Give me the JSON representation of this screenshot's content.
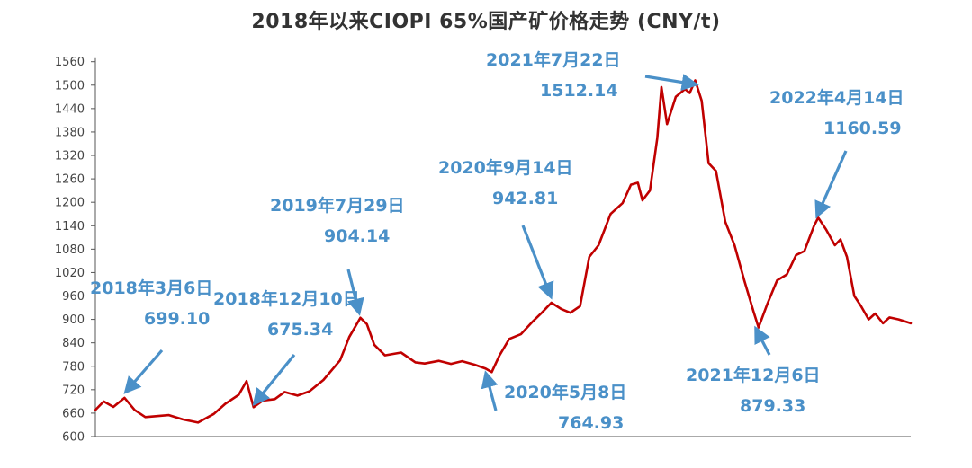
{
  "chart_data": {
    "type": "line",
    "title": "2018年以来CIOPI 65%国产矿价格走势 (CNY/t)",
    "xlabel": "",
    "ylabel": "",
    "ylim": [
      600,
      1580
    ],
    "yticks": [
      600,
      660,
      720,
      780,
      840,
      900,
      960,
      1020,
      1080,
      1140,
      1200,
      1260,
      1320,
      1380,
      1440,
      1500,
      1560
    ],
    "xlim": [
      "2018-01-02",
      "2022-10-31"
    ],
    "grid": false,
    "legend": "none",
    "colors": {
      "line": "#c00000",
      "annotation": "#4a90c8"
    },
    "series": [
      {
        "points": [
          [
            "2018-01-02",
            668
          ],
          [
            "2018-01-20",
            690
          ],
          [
            "2018-02-10",
            676
          ],
          [
            "2018-03-06",
            699.1
          ],
          [
            "2018-03-28",
            668
          ],
          [
            "2018-04-20",
            650
          ],
          [
            "2018-06-10",
            655
          ],
          [
            "2018-07-10",
            644
          ],
          [
            "2018-08-12",
            636
          ],
          [
            "2018-09-15",
            658
          ],
          [
            "2018-10-10",
            684
          ],
          [
            "2018-11-08",
            707
          ],
          [
            "2018-11-25",
            742
          ],
          [
            "2018-12-10",
            675.34
          ],
          [
            "2018-12-30",
            692
          ],
          [
            "2019-01-25",
            696
          ],
          [
            "2019-02-15",
            714
          ],
          [
            "2019-03-15",
            705
          ],
          [
            "2019-04-10",
            716
          ],
          [
            "2019-05-10",
            745
          ],
          [
            "2019-06-15",
            795
          ],
          [
            "2019-07-05",
            855
          ],
          [
            "2019-07-29",
            904.14
          ],
          [
            "2019-08-12",
            888
          ],
          [
            "2019-08-28",
            835
          ],
          [
            "2019-09-20",
            808
          ],
          [
            "2019-10-25",
            815
          ],
          [
            "2019-11-25",
            790
          ],
          [
            "2019-12-15",
            787
          ],
          [
            "2020-01-15",
            794
          ],
          [
            "2020-02-10",
            786
          ],
          [
            "2020-03-05",
            793
          ],
          [
            "2020-04-01",
            784
          ],
          [
            "2020-04-25",
            774
          ],
          [
            "2020-05-08",
            764.93
          ],
          [
            "2020-05-25",
            808
          ],
          [
            "2020-06-15",
            850
          ],
          [
            "2020-07-10",
            862
          ],
          [
            "2020-08-05",
            895
          ],
          [
            "2020-08-25",
            918
          ],
          [
            "2020-09-14",
            942.81
          ],
          [
            "2020-10-05",
            927
          ],
          [
            "2020-10-25",
            917
          ],
          [
            "2020-11-15",
            934
          ],
          [
            "2020-12-05",
            1060
          ],
          [
            "2020-12-25",
            1090
          ],
          [
            "2021-01-20",
            1170
          ],
          [
            "2021-02-15",
            1198
          ],
          [
            "2021-03-05",
            1245
          ],
          [
            "2021-03-20",
            1250
          ],
          [
            "2021-03-30",
            1205
          ],
          [
            "2021-04-15",
            1230
          ],
          [
            "2021-05-01",
            1365
          ],
          [
            "2021-05-10",
            1495
          ],
          [
            "2021-05-22",
            1400
          ],
          [
            "2021-06-10",
            1470
          ],
          [
            "2021-06-30",
            1490
          ],
          [
            "2021-07-10",
            1480
          ],
          [
            "2021-07-22",
            1512.14
          ],
          [
            "2021-08-05",
            1460
          ],
          [
            "2021-08-20",
            1300
          ],
          [
            "2021-09-05",
            1280
          ],
          [
            "2021-09-25",
            1150
          ],
          [
            "2021-10-15",
            1090
          ],
          [
            "2021-11-05",
            1000
          ],
          [
            "2021-11-25",
            920
          ],
          [
            "2021-12-06",
            879.33
          ],
          [
            "2021-12-25",
            940
          ],
          [
            "2022-01-15",
            1000
          ],
          [
            "2022-02-05",
            1015
          ],
          [
            "2022-02-25",
            1065
          ],
          [
            "2022-03-15",
            1075
          ],
          [
            "2022-04-05",
            1140
          ],
          [
            "2022-04-14",
            1160.59
          ],
          [
            "2022-05-01",
            1130
          ],
          [
            "2022-05-20",
            1090
          ],
          [
            "2022-06-01",
            1105
          ],
          [
            "2022-06-15",
            1060
          ],
          [
            "2022-07-01",
            960
          ],
          [
            "2022-07-15",
            935
          ],
          [
            "2022-08-01",
            900
          ],
          [
            "2022-08-15",
            915
          ],
          [
            "2022-09-01",
            890
          ],
          [
            "2022-09-15",
            905
          ],
          [
            "2022-10-05",
            900
          ],
          [
            "2022-10-31",
            890
          ]
        ]
      }
    ],
    "annotations": [
      {
        "date_label": "2018年3月6日",
        "value_label": "699.10",
        "x": "2018-03-06",
        "y": 699.1
      },
      {
        "date_label": "2018年12月10日",
        "value_label": "675.34",
        "x": "2018-12-10",
        "y": 675.34
      },
      {
        "date_label": "2019年7月29日",
        "value_label": "904.14",
        "x": "2019-07-29",
        "y": 904.14
      },
      {
        "date_label": "2020年5月8日",
        "value_label": "764.93",
        "x": "2020-05-08",
        "y": 764.93
      },
      {
        "date_label": "2020年9月14日",
        "value_label": "942.81",
        "x": "2020-09-14",
        "y": 942.81
      },
      {
        "date_label": "2021年7月22日",
        "value_label": "1512.14",
        "x": "2021-07-22",
        "y": 1512.14
      },
      {
        "date_label": "2021年12月6日",
        "value_label": "879.33",
        "x": "2021-12-06",
        "y": 879.33
      },
      {
        "date_label": "2022年4月14日",
        "value_label": "1160.59",
        "x": "2022-04-14",
        "y": 1160.59
      }
    ]
  }
}
